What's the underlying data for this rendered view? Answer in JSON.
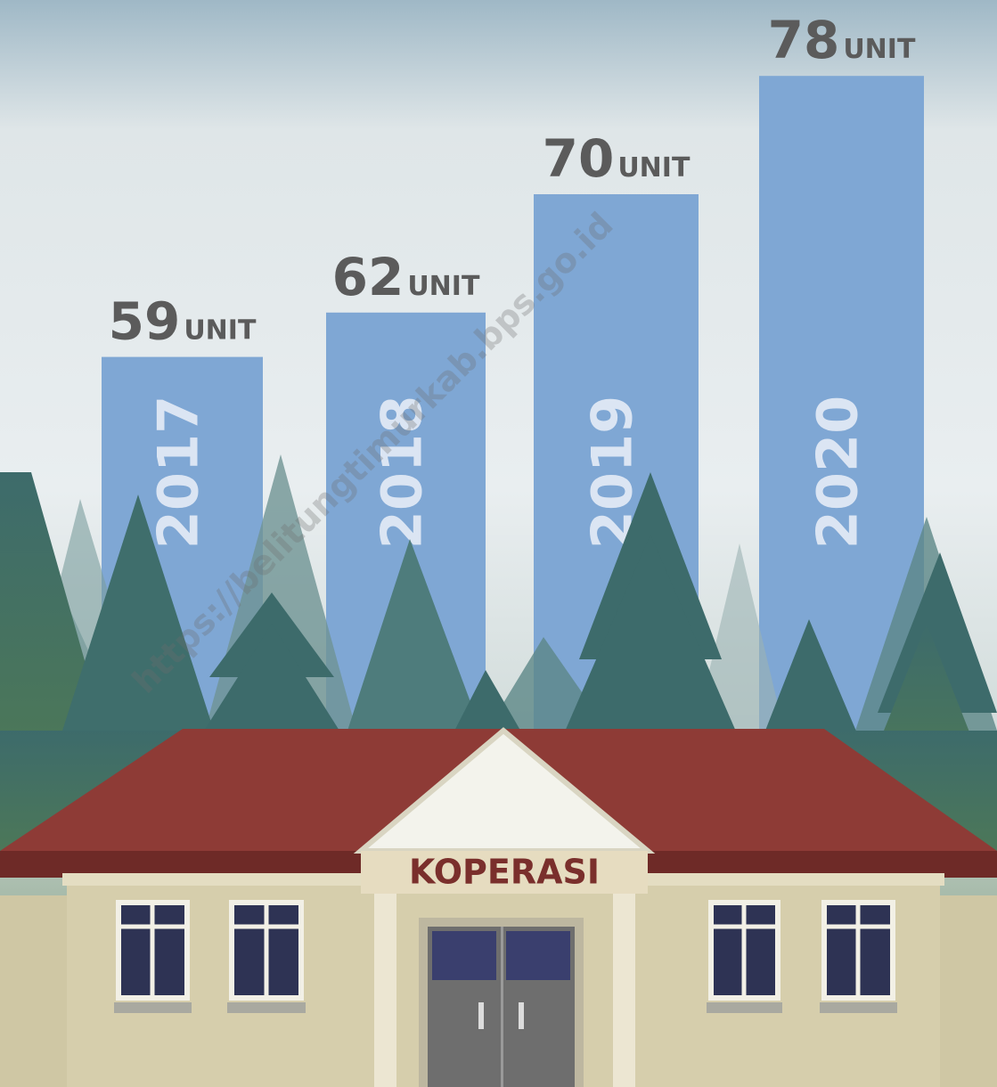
{
  "chart_data": {
    "type": "bar",
    "categories": [
      "2017",
      "2018",
      "2019",
      "2020"
    ],
    "values": [
      59,
      62,
      70,
      78
    ],
    "unit_label": "UNIT",
    "color": "#7fa7d4",
    "building_label": "KOPERASI",
    "watermark": "https://belitungtimurkab.bps.go.id"
  }
}
